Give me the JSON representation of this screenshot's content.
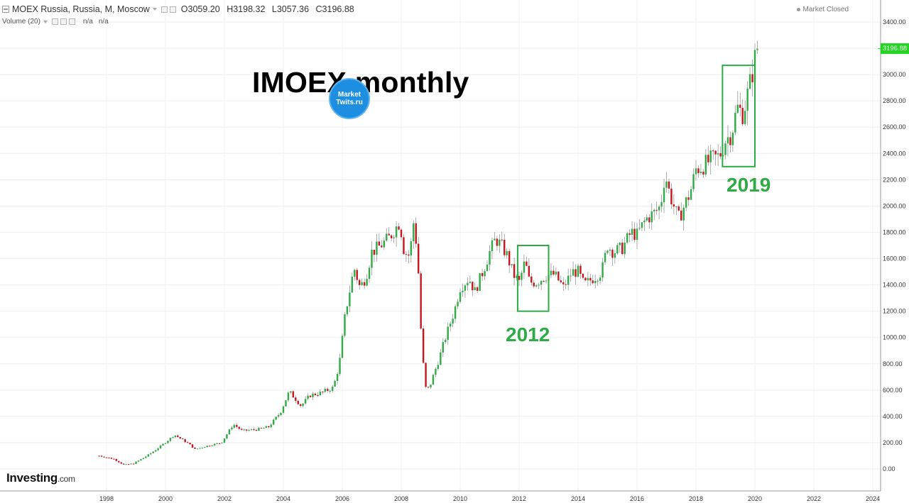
{
  "header": {
    "symbol": "MOEX Russia, Russia, M, Moscow",
    "open": "O3059.20",
    "high": "H3198.32",
    "low": "L3057.36",
    "close": "C3196.88",
    "volume_label": "Volume (20)",
    "volume_val1": "n/a",
    "volume_val2": "n/a",
    "market_status": "Market Closed"
  },
  "title": "IMOEX monthly",
  "logo_text_line1": "Market",
  "logo_text_line2": "Twits.ru",
  "brand": {
    "name": "Investing",
    "suffix": ".com"
  },
  "last_price_label": "3196.88",
  "colors": {
    "up": "#2eab45",
    "down": "#c8151c",
    "annotation": "#2eab45",
    "last_price": "#22d622"
  },
  "chart_data": {
    "type": "candlestick",
    "title": "IMOEX monthly",
    "y_ticks": [
      "0.00",
      "200.00",
      "400.00",
      "600.00",
      "800.00",
      "1000.00",
      "1200.00",
      "1400.00",
      "1600.00",
      "1800.00",
      "2000.00",
      "2200.00",
      "2400.00",
      "2600.00",
      "2800.00",
      "3000.00",
      "3200.00",
      "3400.00"
    ],
    "x_ticks": [
      "1998",
      "2000",
      "2002",
      "2004",
      "2006",
      "2008",
      "2010",
      "2012",
      "2014",
      "2016",
      "2018",
      "2020",
      "2022",
      "2024"
    ],
    "ylim": [
      0,
      3400
    ],
    "xlim": [
      1997.6,
      2024.7
    ],
    "grid": true,
    "last_price": 3196.88,
    "anchors": [
      [
        1997.75,
        100
      ],
      [
        1998.25,
        75
      ],
      [
        1998.6,
        30
      ],
      [
        1998.9,
        40
      ],
      [
        1999.3,
        90
      ],
      [
        1999.7,
        150
      ],
      [
        2000.1,
        220
      ],
      [
        2000.3,
        260
      ],
      [
        2000.8,
        190
      ],
      [
        2001.0,
        150
      ],
      [
        2001.5,
        180
      ],
      [
        2001.9,
        200
      ],
      [
        2002.3,
        340
      ],
      [
        2002.6,
        290
      ],
      [
        2003.1,
        300
      ],
      [
        2003.5,
        320
      ],
      [
        2003.9,
        430
      ],
      [
        2004.2,
        590
      ],
      [
        2004.6,
        480
      ],
      [
        2004.9,
        560
      ],
      [
        2005.3,
        580
      ],
      [
        2005.7,
        620
      ],
      [
        2005.9,
        800
      ],
      [
        2006.1,
        1180
      ],
      [
        2006.4,
        1530
      ],
      [
        2006.6,
        1380
      ],
      [
        2006.8,
        1460
      ],
      [
        2007.0,
        1650
      ],
      [
        2007.3,
        1700
      ],
      [
        2007.6,
        1760
      ],
      [
        2007.8,
        1830
      ],
      [
        2007.95,
        1880
      ],
      [
        2008.1,
        1650
      ],
      [
        2008.3,
        1620
      ],
      [
        2008.4,
        1900
      ],
      [
        2008.55,
        1660
      ],
      [
        2008.7,
        900
      ],
      [
        2008.85,
        580
      ],
      [
        2009.0,
        650
      ],
      [
        2009.3,
        850
      ],
      [
        2009.5,
        1000
      ],
      [
        2009.8,
        1200
      ],
      [
        2010.0,
        1380
      ],
      [
        2010.3,
        1450
      ],
      [
        2010.5,
        1350
      ],
      [
        2010.8,
        1520
      ],
      [
        2011.0,
        1650
      ],
      [
        2011.2,
        1750
      ],
      [
        2011.4,
        1700
      ],
      [
        2011.6,
        1620
      ],
      [
        2011.8,
        1480
      ],
      [
        2012.0,
        1420
      ],
      [
        2012.2,
        1580
      ],
      [
        2012.35,
        1420
      ],
      [
        2012.6,
        1420
      ],
      [
        2012.9,
        1470
      ],
      [
        2013.2,
        1480
      ],
      [
        2013.5,
        1380
      ],
      [
        2013.8,
        1500
      ],
      [
        2014.0,
        1500
      ],
      [
        2014.2,
        1400
      ],
      [
        2014.5,
        1450
      ],
      [
        2014.8,
        1500
      ],
      [
        2015.0,
        1700
      ],
      [
        2015.2,
        1650
      ],
      [
        2015.5,
        1680
      ],
      [
        2015.8,
        1800
      ],
      [
        2016.0,
        1780
      ],
      [
        2016.3,
        1900
      ],
      [
        2016.6,
        1950
      ],
      [
        2016.8,
        2000
      ],
      [
        2016.95,
        2250
      ],
      [
        2017.1,
        2100
      ],
      [
        2017.4,
        1900
      ],
      [
        2017.6,
        2000
      ],
      [
        2017.8,
        2100
      ],
      [
        2018.0,
        2280
      ],
      [
        2018.2,
        2300
      ],
      [
        2018.5,
        2350
      ],
      [
        2018.8,
        2380
      ],
      [
        2019.0,
        2500
      ],
      [
        2019.2,
        2550
      ],
      [
        2019.4,
        2750
      ],
      [
        2019.6,
        2700
      ],
      [
        2019.8,
        2900
      ],
      [
        2019.95,
        3050
      ],
      [
        2020.05,
        3196.88
      ]
    ],
    "annotations": [
      {
        "label": "2012",
        "x_range": [
          2011.95,
          2013.0
        ],
        "y_range": [
          1200,
          1700
        ]
      },
      {
        "label": "2019",
        "x_range": [
          2018.9,
          2020.0
        ],
        "y_range": [
          2300,
          3070
        ]
      }
    ]
  }
}
